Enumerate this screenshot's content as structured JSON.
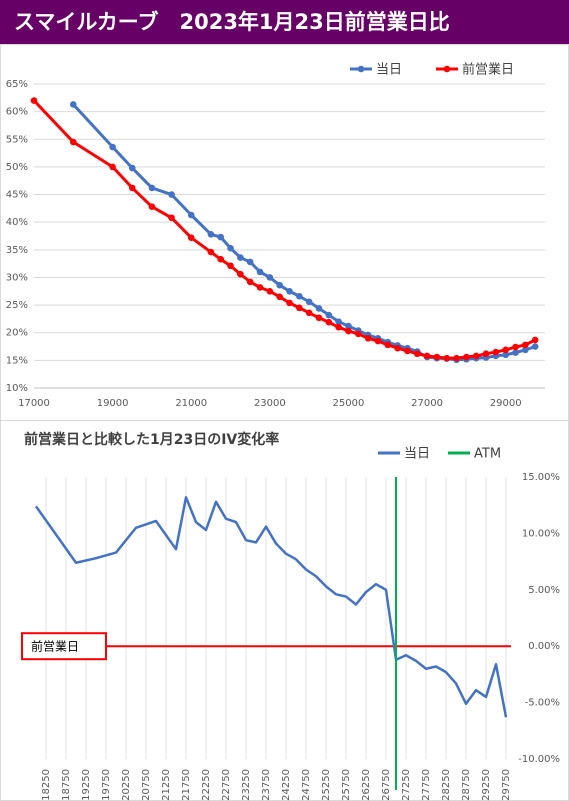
{
  "header": {
    "title": "スマイルカーブ　2023年1月23日前営業日比"
  },
  "chart_data": [
    {
      "type": "line",
      "markers": true,
      "grid": true,
      "xlim": [
        17000,
        30000
      ],
      "xticks": [
        17000,
        19000,
        21000,
        23000,
        25000,
        27000,
        29000
      ],
      "ylim": [
        10,
        65
      ],
      "yticks": [
        {
          "value": 10,
          "label": "10%"
        },
        {
          "value": 15,
          "label": "15%"
        },
        {
          "value": 20,
          "label": "20%"
        },
        {
          "value": 25,
          "label": "25%"
        },
        {
          "value": 30,
          "label": "30%"
        },
        {
          "value": 35,
          "label": "35%"
        },
        {
          "value": 40,
          "label": "40%"
        },
        {
          "value": 45,
          "label": "45%"
        },
        {
          "value": 50,
          "label": "50%"
        },
        {
          "value": 55,
          "label": "55%"
        },
        {
          "value": 60,
          "label": "60%"
        },
        {
          "value": 65,
          "label": "65%"
        }
      ],
      "series": [
        {
          "name": "当日",
          "color": "#4472c4",
          "x": [
            18000,
            19000,
            19500,
            20000,
            20500,
            21000,
            21500,
            21750,
            22000,
            22250,
            22500,
            22750,
            23000,
            23250,
            23500,
            23750,
            24000,
            24250,
            24500,
            24750,
            25000,
            25250,
            25500,
            25750,
            26000,
            26250,
            26500,
            26750,
            27000,
            27250,
            27500,
            27750,
            28000,
            28250,
            28500,
            28750,
            29000,
            29250,
            29500,
            29750
          ],
          "values": [
            61.3,
            53.6,
            49.8,
            46.2,
            45.0,
            41.3,
            37.8,
            37.3,
            35.3,
            33.6,
            32.8,
            31.0,
            30.0,
            28.6,
            27.5,
            26.6,
            25.6,
            24.4,
            23.2,
            22.0,
            21.2,
            20.4,
            19.6,
            19.0,
            18.3,
            17.7,
            17.2,
            16.6,
            15.6,
            15.4,
            15.3,
            15.1,
            15.2,
            15.4,
            15.5,
            15.8,
            16.0,
            16.4,
            16.9,
            17.5
          ]
        },
        {
          "name": "前営業日",
          "color": "#ff0000",
          "x": [
            17000,
            18000,
            19000,
            19500,
            20000,
            20500,
            21000,
            21500,
            21750,
            22000,
            22250,
            22500,
            22750,
            23000,
            23250,
            23500,
            23750,
            24000,
            24250,
            24500,
            24750,
            25000,
            25250,
            25500,
            25750,
            26000,
            26250,
            26500,
            26750,
            27000,
            27250,
            27500,
            27750,
            28000,
            28250,
            28500,
            28750,
            29000,
            29250,
            29500,
            29750
          ],
          "values": [
            62,
            54.5,
            50,
            46.2,
            42.8,
            40.8,
            37.2,
            34.6,
            33.3,
            32.1,
            30.6,
            29.2,
            28.2,
            27.5,
            26.5,
            25.4,
            24.5,
            23.6,
            22.7,
            21.9,
            21.0,
            20.3,
            19.8,
            19.0,
            18.5,
            17.8,
            17.2,
            16.7,
            16.2,
            15.8,
            15.6,
            15.4,
            15.4,
            15.6,
            15.8,
            16.2,
            16.5,
            16.9,
            17.4,
            17.8,
            18.7
          ]
        }
      ]
    },
    {
      "type": "line",
      "markers": false,
      "xgrid": true,
      "title": "前営業日と比較した1月23日のIV変化率",
      "xlim": [
        17875,
        29875
      ],
      "xticks": [
        18250,
        18750,
        19250,
        19750,
        20250,
        20750,
        21250,
        21750,
        22250,
        22750,
        23250,
        23750,
        24250,
        24750,
        25250,
        25750,
        26250,
        26750,
        27250,
        27750,
        28250,
        28750,
        29250,
        29750
      ],
      "ylim": [
        -10,
        15
      ],
      "yticks": [
        {
          "value": -10,
          "label": "-10.00%"
        },
        {
          "value": -5,
          "label": "-5.00%"
        },
        {
          "value": 0,
          "label": "0.00%"
        },
        {
          "value": 5,
          "label": "5.00%"
        },
        {
          "value": 10,
          "label": "10.00%"
        },
        {
          "value": 15,
          "label": "15.00%"
        }
      ],
      "series": [
        {
          "name": "当日",
          "color": "#4472c4",
          "x": [
            18000,
            19000,
            19500,
            20000,
            20500,
            21000,
            21500,
            21750,
            22000,
            22250,
            22500,
            22750,
            23000,
            23250,
            23500,
            23750,
            24000,
            24250,
            24500,
            24750,
            25000,
            25250,
            25500,
            25750,
            26000,
            26250,
            26500,
            26750,
            27000,
            27250,
            27500,
            27750,
            28000,
            28250,
            28500,
            28750,
            29000,
            29250,
            29500,
            29750
          ],
          "values": [
            12.4,
            7.4,
            7.8,
            8.3,
            10.5,
            11.1,
            8.6,
            13.2,
            11.0,
            10.3,
            12.8,
            11.3,
            11.0,
            9.4,
            9.2,
            10.6,
            9.1,
            8.2,
            7.7,
            6.8,
            6.2,
            5.3,
            4.6,
            4.4,
            3.7,
            4.8,
            5.5,
            5.0,
            -1.2,
            -0.8,
            -1.3,
            -2.0,
            -1.8,
            -2.3,
            -3.3,
            -5.1,
            -3.9,
            -4.5,
            -1.6,
            -6.3
          ]
        }
      ],
      "atm": {
        "name": "ATM",
        "x": 27000,
        "color": "#00b050"
      },
      "hline": {
        "y": 0,
        "color": "#ff0000",
        "label": "前営業日"
      }
    }
  ]
}
